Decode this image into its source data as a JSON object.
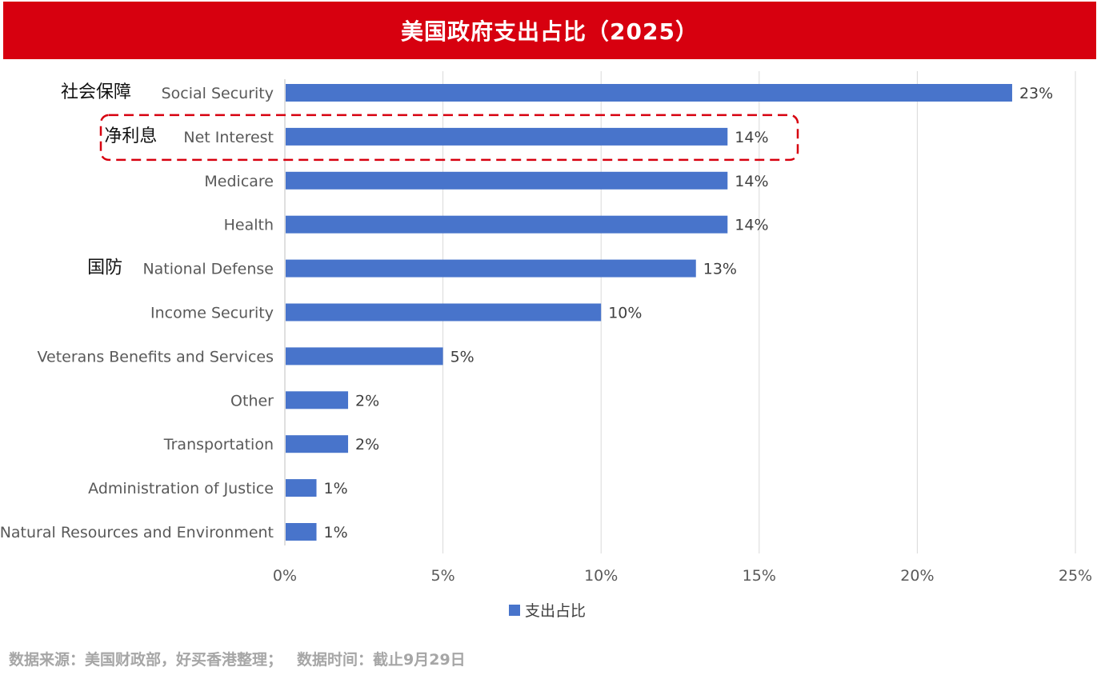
{
  "title": "美国政府支出占比（2025）",
  "chart_data": {
    "type": "bar",
    "orientation": "horizontal",
    "categories": [
      "Social Security",
      "Net Interest",
      "Medicare",
      "Health",
      "National Defense",
      "Income Security",
      "Veterans Benefits and Services",
      "Other",
      "Transportation",
      "Administration of Justice",
      "Natural Resources and Environment"
    ],
    "category_annotations": {
      "Social Security": "社会保障",
      "Net Interest": "净利息",
      "National Defense": "国防"
    },
    "highlighted_category": "Net Interest",
    "series": [
      {
        "name": "支出占比",
        "values": [
          23,
          14,
          14,
          14,
          13,
          10,
          5,
          2,
          2,
          1,
          1
        ],
        "data_labels": [
          "23%",
          "14%",
          "14%",
          "14%",
          "13%",
          "10%",
          "5%",
          "2%",
          "2%",
          "1%",
          "1%"
        ]
      }
    ],
    "xlim": [
      0,
      25
    ],
    "xticks": [
      "0%",
      "5%",
      "10%",
      "15%",
      "20%",
      "25%"
    ],
    "grid": "vertical",
    "legend": "bottom",
    "bar_color": "#4874cb",
    "highlight_color": "#d7000f"
  },
  "footer": {
    "source": "数据来源：美国财政部，好买香港整理；",
    "date": "数据时间：截止9月29日"
  }
}
